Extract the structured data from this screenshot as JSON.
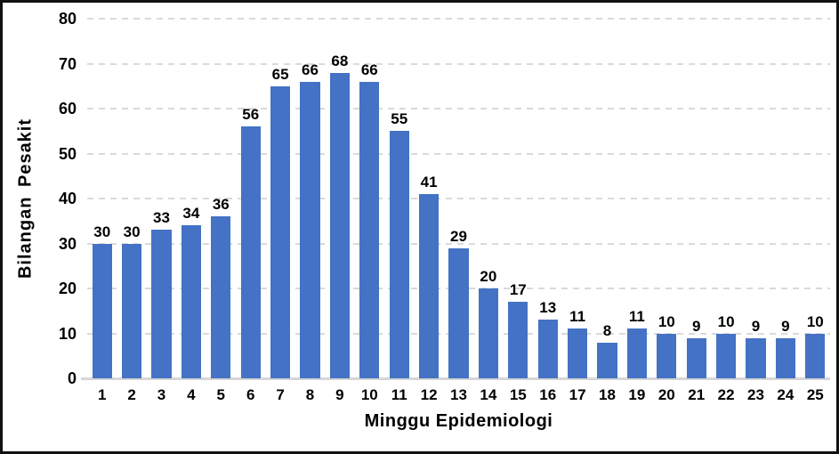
{
  "chart_data": {
    "type": "bar",
    "title": "",
    "xlabel": "Minggu Epidemiologi",
    "ylabel": "Bilangan Pesakit",
    "categories": [
      "1",
      "2",
      "3",
      "4",
      "5",
      "6",
      "7",
      "8",
      "9",
      "10",
      "11",
      "12",
      "13",
      "14",
      "15",
      "16",
      "17",
      "18",
      "19",
      "20",
      "21",
      "22",
      "23",
      "24",
      "25"
    ],
    "values": [
      30,
      30,
      33,
      34,
      36,
      56,
      65,
      66,
      68,
      66,
      55,
      41,
      29,
      20,
      17,
      13,
      11,
      8,
      11,
      10,
      9,
      10,
      9,
      9,
      10
    ],
    "ylim": [
      0,
      80
    ],
    "yticks": [
      0,
      10,
      20,
      30,
      40,
      50,
      60,
      70,
      80
    ],
    "grid": "horizontal-dashed",
    "legend_position": "none",
    "data_labels": "above-bars",
    "colors": {
      "bar": "#4472C4",
      "gridline": "#DADADA",
      "baseline": "#D6D6D6",
      "text": "#000000",
      "background": "#FFFFFF",
      "frame_border": "#111111"
    }
  }
}
